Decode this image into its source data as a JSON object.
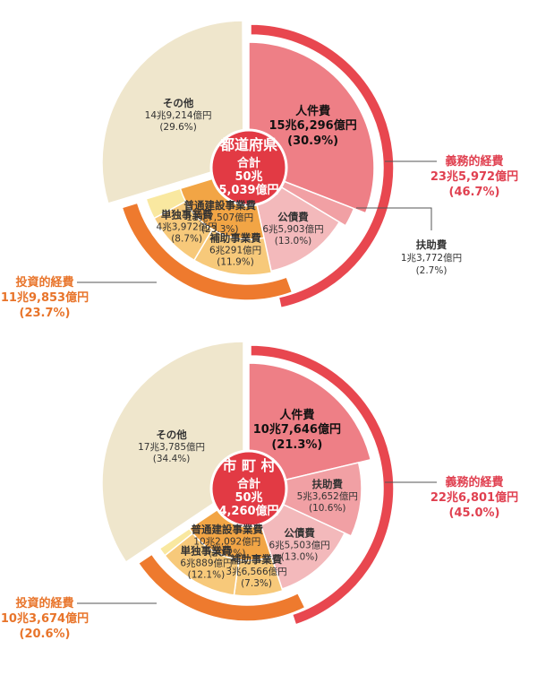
{
  "colors": {
    "red_ring": "#e8474f",
    "orange_ring": "#ee7a2e",
    "other": "#efe6cc",
    "personnel": "#ee7f86",
    "debt": "#f3b9bb",
    "assistance": "#f1a0a4",
    "construction": "#f2a545",
    "construction_light": "#f7c97a",
    "center": "#e23a44"
  },
  "chart_data": [
    {
      "type": "pie",
      "center": {
        "title": "都道府県",
        "total_label": "合計",
        "total_line1": "50兆",
        "total_line2": "5,039億円"
      },
      "slices": [
        {
          "key": "personnel",
          "label": "人件費",
          "amount": "15兆6,296億円",
          "percent": 30.9,
          "percent_text": "(30.9%)",
          "group": "obligatory"
        },
        {
          "key": "assistance",
          "label": "扶助費",
          "amount": "1兆3,772億円",
          "percent": 2.7,
          "percent_text": "(2.7%)",
          "group": "obligatory"
        },
        {
          "key": "debt",
          "label": "公債費",
          "amount": "6兆5,903億円",
          "percent": 13.0,
          "percent_text": "(13.0%)",
          "group": "obligatory"
        },
        {
          "key": "subsidy",
          "label": "補助事業費",
          "amount": "6兆291億円",
          "percent": 11.9,
          "percent_text": "(11.9%)",
          "group": "investment"
        },
        {
          "key": "single",
          "label": "単独事業費",
          "amount": "4兆3,972億円",
          "percent": 8.7,
          "percent_text": "(8.7%)",
          "group": "investment"
        },
        {
          "key": "extra",
          "label": "",
          "amount": "",
          "percent": 3.1,
          "percent_text": "",
          "group": "investment"
        },
        {
          "key": "other",
          "label": "その他",
          "amount": "14兆9,214億円",
          "percent": 29.6,
          "percent_text": "(29.6%)",
          "group": "other"
        }
      ],
      "construction": {
        "label": "普通建設事業費",
        "amount": "11兆7,507億円",
        "percent_text": "(23.3%)"
      },
      "obligatory": {
        "label": "義務的経費",
        "amount": "23兆5,972億円",
        "percent_text": "(46.7%)"
      },
      "investment": {
        "label": "投資的経費",
        "amount": "11兆9,853億円",
        "percent_text": "(23.7%)"
      }
    },
    {
      "type": "pie",
      "center": {
        "title": "市 町 村",
        "total_label": "合計",
        "total_line1": "50兆",
        "total_line2": "4,260億円"
      },
      "slices": [
        {
          "key": "personnel",
          "label": "人件費",
          "amount": "10兆7,646億円",
          "percent": 21.3,
          "percent_text": "(21.3%)",
          "group": "obligatory"
        },
        {
          "key": "assistance",
          "label": "扶助費",
          "amount": "5兆3,652億円",
          "percent": 10.6,
          "percent_text": "(10.6%)",
          "group": "obligatory"
        },
        {
          "key": "debt",
          "label": "公債費",
          "amount": "6兆5,503億円",
          "percent": 13.0,
          "percent_text": "(13.0%)",
          "group": "obligatory"
        },
        {
          "key": "subsidy",
          "label": "補助事業費",
          "amount": "3兆6,566億円",
          "percent": 7.3,
          "percent_text": "(7.3%)",
          "group": "investment"
        },
        {
          "key": "single",
          "label": "単独事業費",
          "amount": "6兆889億円",
          "percent": 12.1,
          "percent_text": "(12.1%)",
          "group": "investment"
        },
        {
          "key": "extra",
          "label": "",
          "amount": "",
          "percent": 1.3,
          "percent_text": "",
          "group": "investment"
        },
        {
          "key": "other",
          "label": "その他",
          "amount": "17兆3,785億円",
          "percent": 34.4,
          "percent_text": "(34.4%)",
          "group": "other"
        }
      ],
      "construction": {
        "label": "普通建設事業費",
        "amount": "10兆2,092億円",
        "percent_text": "(20.2%)"
      },
      "obligatory": {
        "label": "義務的経費",
        "amount": "22兆6,801億円",
        "percent_text": "(45.0%)"
      },
      "investment": {
        "label": "投資的経費",
        "amount": "10兆3,674億円",
        "percent_text": "(20.6%)"
      }
    }
  ]
}
